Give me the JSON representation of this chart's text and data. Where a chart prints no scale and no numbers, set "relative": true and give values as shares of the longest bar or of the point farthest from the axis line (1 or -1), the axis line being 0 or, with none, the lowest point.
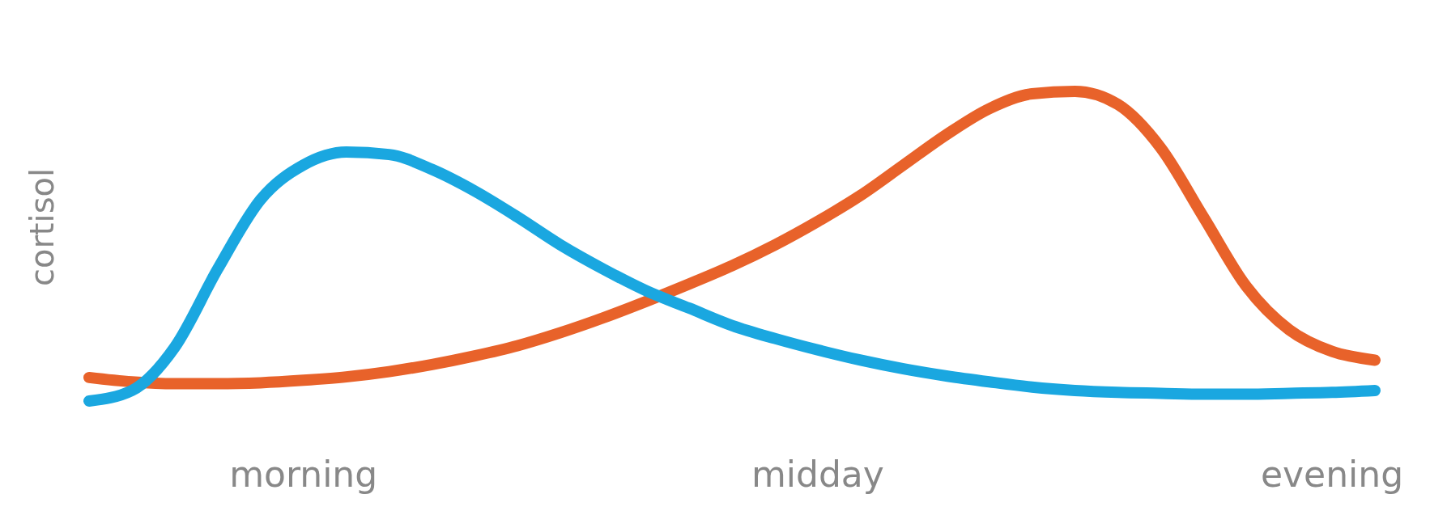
{
  "chart_data": {
    "type": "line",
    "relative": true,
    "ylabel": "cortisol",
    "grid": false,
    "line_style": "solid",
    "marker": "none",
    "categories": [
      null,
      null,
      null,
      null,
      null,
      "morning",
      null,
      null,
      null,
      null,
      null,
      null,
      null,
      null,
      null,
      null,
      null,
      "midday",
      null,
      null,
      null,
      null,
      null,
      null,
      null,
      null,
      null,
      null,
      null,
      "evening",
      null
    ],
    "series": [
      {
        "color": "#e8622a",
        "values": [
          0.076,
          0.062,
          0.056,
          0.056,
          0.059,
          0.067,
          0.078,
          0.095,
          0.118,
          0.146,
          0.179,
          0.221,
          0.269,
          0.322,
          0.378,
          0.437,
          0.504,
          0.58,
          0.664,
          0.762,
          0.86,
          0.944,
          0.992,
          1.0,
          0.958,
          0.818,
          0.594,
          0.37,
          0.23,
          0.16,
          0.132
        ]
      },
      {
        "color": "#1aa7e0",
        "values": [
          0.0,
          0.034,
          0.174,
          0.426,
          0.65,
          0.762,
          0.804,
          0.796,
          0.748,
          0.678,
          0.594,
          0.504,
          0.426,
          0.356,
          0.3,
          0.244,
          0.202,
          0.165,
          0.132,
          0.104,
          0.081,
          0.062,
          0.045,
          0.034,
          0.028,
          0.025,
          0.022,
          0.022,
          0.025,
          0.028,
          0.034
        ]
      }
    ]
  }
}
